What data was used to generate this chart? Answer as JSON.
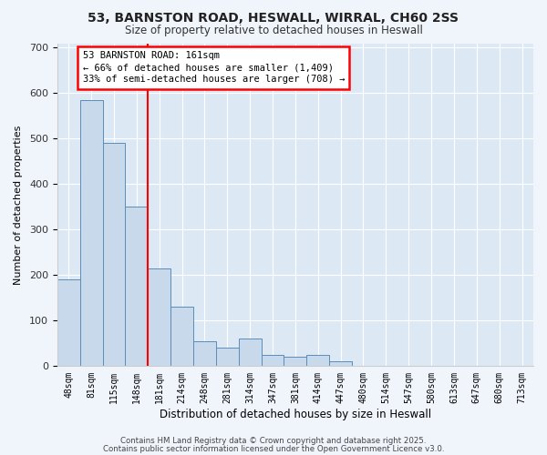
{
  "title_line1": "53, BARNSTON ROAD, HESWALL, WIRRAL, CH60 2SS",
  "title_line2": "Size of property relative to detached houses in Heswall",
  "xlabel": "Distribution of detached houses by size in Heswall",
  "ylabel": "Number of detached properties",
  "categories": [
    "48sqm",
    "81sqm",
    "115sqm",
    "148sqm",
    "181sqm",
    "214sqm",
    "248sqm",
    "281sqm",
    "314sqm",
    "347sqm",
    "381sqm",
    "414sqm",
    "447sqm",
    "480sqm",
    "514sqm",
    "547sqm",
    "580sqm",
    "613sqm",
    "647sqm",
    "680sqm",
    "713sqm"
  ],
  "values": [
    190,
    585,
    490,
    350,
    215,
    130,
    55,
    40,
    60,
    25,
    20,
    25,
    10,
    0,
    0,
    0,
    0,
    0,
    0,
    0,
    0
  ],
  "bar_color": "#c9d9ec",
  "bar_edge_color": "#5b8db8",
  "plot_bg_color": "#dce9f5",
  "fig_bg_color": "#f0f5fc",
  "red_line_x": 3.5,
  "annotation_text_line1": "53 BARNSTON ROAD: 161sqm",
  "annotation_text_line2": "← 66% of detached houses are smaller (1,409)",
  "annotation_text_line3": "33% of semi-detached houses are larger (708) →",
  "ylim": [
    0,
    710
  ],
  "yticks": [
    0,
    100,
    200,
    300,
    400,
    500,
    600,
    700
  ],
  "footer_line1": "Contains HM Land Registry data © Crown copyright and database right 2025.",
  "footer_line2": "Contains public sector information licensed under the Open Government Licence v3.0."
}
